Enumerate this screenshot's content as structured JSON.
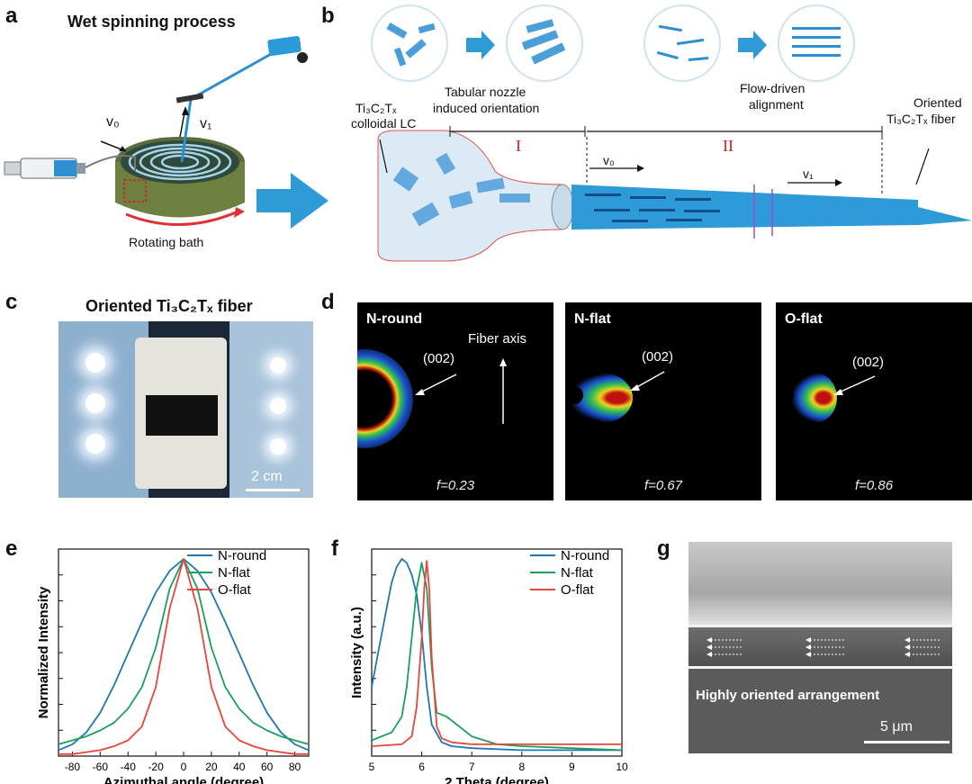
{
  "panel_a": {
    "label": "a",
    "title": "Wet spinning process",
    "v0": "v₀",
    "v1": "v₁",
    "bath": "Rotating bath"
  },
  "panel_b": {
    "label": "b",
    "lc": [
      "Ti₃C₂Tₓ",
      "colloidal LC"
    ],
    "nozzle": [
      "Tabular  nozzle",
      "induced orientation"
    ],
    "flow": [
      "Flow-driven",
      "alignment"
    ],
    "fiber": [
      "Oriented",
      "Ti₃C₂Tₓ fiber"
    ],
    "region1": "I",
    "region2": "II",
    "v0": "v₀",
    "v1": "v₁"
  },
  "panel_c": {
    "label": "c",
    "title": "Oriented Ti₃C₂Tₓ fiber",
    "scale": "2 cm"
  },
  "panel_d": {
    "label": "d",
    "images": [
      {
        "name": "N-round",
        "f": "f=0.23"
      },
      {
        "name": "N-flat",
        "f": "f=0.67"
      },
      {
        "name": "O-flat",
        "f": "f=0.86"
      }
    ],
    "peak": "(002)",
    "axis": "Fiber axis"
  },
  "panel_g": {
    "label": "g",
    "caption": "Highly oriented arrangement",
    "scale": "5 μm"
  },
  "colors": {
    "blue": "#1f77b4",
    "green": "#1aa05a",
    "red": "#e8453c"
  },
  "chart_data": [
    {
      "panel": "e",
      "type": "line",
      "xlabel": "Azimuthal  angle (degree)",
      "ylabel": "Normalized Intensity",
      "xlim": [
        -90,
        90
      ],
      "ylim": [
        0,
        1.05
      ],
      "xticks": [
        -80,
        -60,
        -40,
        -20,
        0,
        20,
        40,
        60,
        80
      ],
      "legend": "top-right",
      "series": [
        {
          "name": "N-round",
          "color": "#1f77b4",
          "x": [
            -90,
            -80,
            -70,
            -60,
            -50,
            -40,
            -30,
            -20,
            -10,
            0,
            10,
            20,
            30,
            40,
            50,
            60,
            70,
            80,
            90
          ],
          "y": [
            0.03,
            0.06,
            0.12,
            0.22,
            0.36,
            0.52,
            0.68,
            0.83,
            0.94,
            1.0,
            0.94,
            0.83,
            0.68,
            0.52,
            0.36,
            0.22,
            0.12,
            0.06,
            0.03
          ]
        },
        {
          "name": "N-flat",
          "color": "#1aa05a",
          "x": [
            -90,
            -80,
            -70,
            -60,
            -50,
            -40,
            -30,
            -20,
            -10,
            0,
            10,
            20,
            30,
            40,
            50,
            60,
            70,
            80,
            90
          ],
          "y": [
            0.06,
            0.08,
            0.1,
            0.13,
            0.17,
            0.24,
            0.35,
            0.55,
            0.85,
            1.0,
            0.85,
            0.55,
            0.35,
            0.24,
            0.17,
            0.13,
            0.1,
            0.08,
            0.06
          ]
        },
        {
          "name": "O-flat",
          "color": "#e8453c",
          "x": [
            -90,
            -80,
            -70,
            -60,
            -50,
            -40,
            -30,
            -20,
            -10,
            0,
            10,
            20,
            30,
            40,
            50,
            60,
            70,
            80,
            90
          ],
          "y": [
            0.01,
            0.01,
            0.02,
            0.03,
            0.05,
            0.08,
            0.15,
            0.35,
            0.75,
            1.0,
            0.75,
            0.35,
            0.15,
            0.08,
            0.05,
            0.03,
            0.02,
            0.01,
            0.01
          ]
        }
      ]
    },
    {
      "panel": "f",
      "type": "line",
      "xlabel": "2 Theta (degree)",
      "ylabel": "Intensity (a.u.)",
      "xlim": [
        5,
        10
      ],
      "ylim": [
        0,
        1.05
      ],
      "xticks": [
        5,
        6,
        7,
        8,
        9,
        10
      ],
      "legend": "top-right",
      "series": [
        {
          "name": "N-round",
          "color": "#1f77b4",
          "x": [
            5.0,
            5.2,
            5.4,
            5.5,
            5.6,
            5.7,
            5.8,
            5.9,
            6.0,
            6.1,
            6.2,
            6.4,
            6.6,
            7.0,
            8.0,
            9.0,
            10.0
          ],
          "y": [
            0.35,
            0.62,
            0.88,
            0.96,
            1.0,
            0.98,
            0.92,
            0.82,
            0.62,
            0.35,
            0.16,
            0.07,
            0.05,
            0.04,
            0.03,
            0.03,
            0.03
          ]
        },
        {
          "name": "N-flat",
          "color": "#1aa05a",
          "x": [
            5.0,
            5.4,
            5.6,
            5.7,
            5.8,
            5.9,
            6.0,
            6.1,
            6.2,
            6.3,
            6.5,
            6.7,
            7.0,
            7.5,
            8.0,
            9.0,
            10.0
          ],
          "y": [
            0.08,
            0.12,
            0.2,
            0.35,
            0.6,
            0.85,
            0.98,
            0.85,
            0.45,
            0.22,
            0.2,
            0.16,
            0.1,
            0.06,
            0.05,
            0.04,
            0.03
          ]
        },
        {
          "name": "O-flat",
          "color": "#e8453c",
          "x": [
            5.0,
            5.6,
            5.8,
            5.9,
            6.0,
            6.05,
            6.1,
            6.15,
            6.2,
            6.3,
            6.4,
            6.6,
            7.0,
            8.0,
            9.0,
            10.0
          ],
          "y": [
            0.05,
            0.06,
            0.1,
            0.25,
            0.6,
            0.85,
            0.99,
            0.85,
            0.5,
            0.15,
            0.09,
            0.07,
            0.06,
            0.06,
            0.06,
            0.06
          ]
        }
      ]
    }
  ]
}
